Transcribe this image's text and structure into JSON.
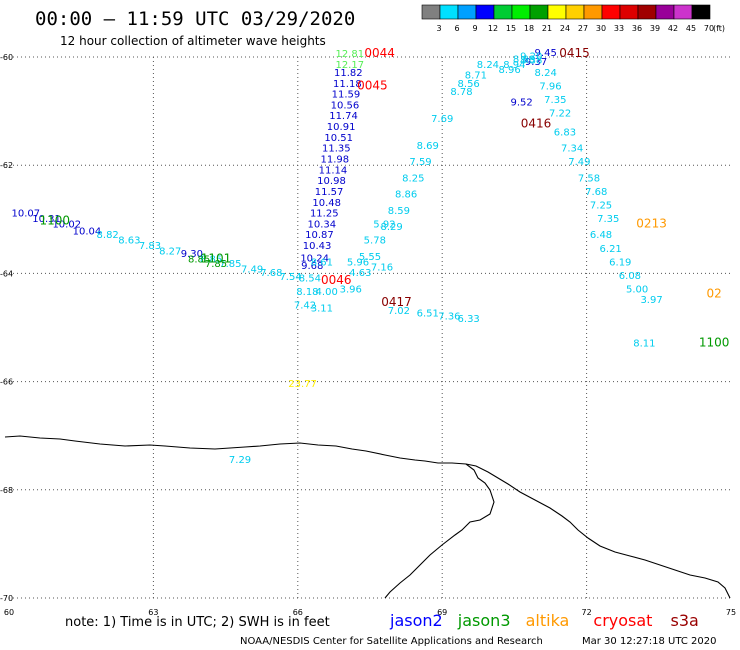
{
  "header": {
    "title": "00:00 – 11:59 UTC 03/29/2020",
    "subtitle": "12 hour collection of altimeter wave heights"
  },
  "legend": {
    "unit": "(ft)",
    "bins": [
      {
        "label": "3",
        "color": "#808080"
      },
      {
        "label": "6",
        "color": "#00e0ff"
      },
      {
        "label": "9",
        "color": "#00a0ff"
      },
      {
        "label": "12",
        "color": "#0000ff"
      },
      {
        "label": "15",
        "color": "#00cc33"
      },
      {
        "label": "18",
        "color": "#00ee00"
      },
      {
        "label": "21",
        "color": "#00a000"
      },
      {
        "label": "24",
        "color": "#ffff00"
      },
      {
        "label": "27",
        "color": "#ffd000"
      },
      {
        "label": "30",
        "color": "#ff9900"
      },
      {
        "label": "33",
        "color": "#ff0000"
      },
      {
        "label": "36",
        "color": "#dd0000"
      },
      {
        "label": "39",
        "color": "#a00000"
      },
      {
        "label": "42",
        "color": "#990099"
      },
      {
        "label": "45",
        "color": "#cc33cc"
      },
      {
        "label": "70",
        "color": "#000000"
      }
    ]
  },
  "footer": {
    "note": "note:  1) Time is in UTC;  2) SWH is in feet",
    "satellites": [
      {
        "name": "jason2",
        "color": "#0000ff"
      },
      {
        "name": "jason3",
        "color": "#009900"
      },
      {
        "name": "altika",
        "color": "#ff9900"
      },
      {
        "name": "cryosat",
        "color": "#ff0000"
      },
      {
        "name": "s3a",
        "color": "#990000"
      }
    ],
    "credit": "NOAA/NESDIS Center for Satellite Applications and Research",
    "timestamp": "Mar 30 12:27:18 UTC 2020"
  },
  "chart_data": {
    "type": "scatter",
    "title": "00:00 – 11:59 UTC 03/29/2020",
    "subtitle": "12 hour collection of altimeter wave heights",
    "xlim": [
      60,
      75
    ],
    "ylim": [
      -70,
      -60
    ],
    "xticks": [
      "60",
      "63",
      "66",
      "69",
      "72",
      "75"
    ],
    "yticks": [
      "-60",
      "-62",
      "-64",
      "-66",
      "-68",
      "-70"
    ],
    "grid": true,
    "legend": "bottom",
    "colors": {
      "grey": "#808080",
      "cyan": "#00ccee",
      "ltblue": "#0099ff",
      "blue": "#0000cc",
      "ltgreen": "#55ee55",
      "green": "#009900",
      "yellow": "#ffee00",
      "orange": "#ff9900",
      "red": "#ff0000",
      "darkred": "#880000"
    },
    "time_labels": [
      {
        "text": "0044",
        "x": 67.7,
        "y": -60.0,
        "color": "red"
      },
      {
        "text": "0045",
        "x": 67.55,
        "y": -60.6,
        "color": "red"
      },
      {
        "text": "0046",
        "x": 66.8,
        "y": -64.2,
        "color": "red"
      },
      {
        "text": "0415",
        "x": 71.75,
        "y": -60.0,
        "color": "darkred"
      },
      {
        "text": "0416",
        "x": 70.95,
        "y": -61.3,
        "color": "darkred"
      },
      {
        "text": "0417",
        "x": 68.05,
        "y": -64.6,
        "color": "darkred"
      },
      {
        "text": "1100",
        "x": 60.95,
        "y": -63.1,
        "color": "green"
      },
      {
        "text": "1101",
        "x": 64.3,
        "y": -63.8,
        "color": "green"
      },
      {
        "text": "1100",
        "x": 74.65,
        "y": -65.35,
        "color": "green"
      },
      {
        "text": "0213",
        "x": 73.35,
        "y": -63.15,
        "color": "orange"
      },
      {
        "text": "02",
        "x": 74.65,
        "y": -64.45,
        "color": "orange"
      }
    ],
    "series": [
      {
        "color": "ltgreen",
        "points": [
          {
            "x": 67.08,
            "y": -60.0,
            "v": "12.81"
          },
          {
            "x": 67.08,
            "y": -60.2,
            "v": "12.17"
          }
        ]
      },
      {
        "color": "blue",
        "points": [
          {
            "x": 67.05,
            "y": -60.35,
            "v": "11.82"
          },
          {
            "x": 67.03,
            "y": -60.55,
            "v": "11.18"
          },
          {
            "x": 67.0,
            "y": -60.75,
            "v": "11.59"
          },
          {
            "x": 66.98,
            "y": -60.95,
            "v": "10.56"
          },
          {
            "x": 66.95,
            "y": -61.15,
            "v": "11.74"
          },
          {
            "x": 66.9,
            "y": -61.35,
            "v": "10.91"
          },
          {
            "x": 66.85,
            "y": -61.55,
            "v": "10.51"
          },
          {
            "x": 66.8,
            "y": -61.75,
            "v": "11.35"
          },
          {
            "x": 66.77,
            "y": -61.95,
            "v": "11.98"
          },
          {
            "x": 66.73,
            "y": -62.15,
            "v": "11.14"
          },
          {
            "x": 66.7,
            "y": -62.35,
            "v": "10.98"
          },
          {
            "x": 66.65,
            "y": -62.55,
            "v": "11.57"
          },
          {
            "x": 66.6,
            "y": -62.75,
            "v": "10.48"
          },
          {
            "x": 66.55,
            "y": -62.95,
            "v": "11.25"
          },
          {
            "x": 66.5,
            "y": -63.15,
            "v": "10.34"
          },
          {
            "x": 66.45,
            "y": -63.35,
            "v": "10.87"
          },
          {
            "x": 66.4,
            "y": -63.55,
            "v": "10.43"
          },
          {
            "x": 66.35,
            "y": -63.78,
            "v": "10.24"
          },
          {
            "x": 66.3,
            "y": -63.92,
            "v": "9.68"
          },
          {
            "x": 60.35,
            "y": -62.95,
            "v": "10.07"
          },
          {
            "x": 60.78,
            "y": -63.05,
            "v": "10.31"
          },
          {
            "x": 61.2,
            "y": -63.15,
            "v": "10.02"
          },
          {
            "x": 61.62,
            "y": -63.28,
            "v": "10.04"
          },
          {
            "x": 63.8,
            "y": -63.7,
            "v": "9.30"
          },
          {
            "x": 71.15,
            "y": -59.98,
            "v": "9.45"
          },
          {
            "x": 70.95,
            "y": -60.15,
            "v": "9.37"
          },
          {
            "x": 70.65,
            "y": -60.9,
            "v": "9.52"
          }
        ]
      },
      {
        "color": "cyan",
        "points": [
          {
            "x": 66.25,
            "y": -64.15,
            "v": "8.54"
          },
          {
            "x": 66.2,
            "y": -64.4,
            "v": "8.18"
          },
          {
            "x": 66.15,
            "y": -64.65,
            "v": "7.42"
          },
          {
            "x": 66.6,
            "y": -64.4,
            "v": "4.00"
          },
          {
            "x": 66.5,
            "y": -64.7,
            "v": "3.11"
          },
          {
            "x": 67.1,
            "y": -64.35,
            "v": "3.96"
          },
          {
            "x": 67.3,
            "y": -64.05,
            "v": "4.63"
          },
          {
            "x": 67.5,
            "y": -63.75,
            "v": "5.55"
          },
          {
            "x": 67.6,
            "y": -63.45,
            "v": "5.78"
          },
          {
            "x": 67.8,
            "y": -63.15,
            "v": "5.92"
          },
          {
            "x": 67.25,
            "y": -63.85,
            "v": "5.96"
          },
          {
            "x": 67.75,
            "y": -63.95,
            "v": "7.16"
          },
          {
            "x": 66.5,
            "y": -63.85,
            "v": "8.61"
          },
          {
            "x": 67.95,
            "y": -63.2,
            "v": "8.29"
          },
          {
            "x": 68.1,
            "y": -62.9,
            "v": "8.59"
          },
          {
            "x": 68.25,
            "y": -62.6,
            "v": "8.86"
          },
          {
            "x": 68.4,
            "y": -62.3,
            "v": "8.25"
          },
          {
            "x": 68.55,
            "y": -62.0,
            "v": "7.59"
          },
          {
            "x": 68.7,
            "y": -61.7,
            "v": "8.69"
          },
          {
            "x": 69.0,
            "y": -61.2,
            "v": "7.69"
          },
          {
            "x": 69.4,
            "y": -60.7,
            "v": "8.78"
          },
          {
            "x": 69.55,
            "y": -60.55,
            "v": "8.56"
          },
          {
            "x": 69.7,
            "y": -60.4,
            "v": "8.71"
          },
          {
            "x": 69.95,
            "y": -60.2,
            "v": "8.24"
          },
          {
            "x": 70.4,
            "y": -60.3,
            "v": "8.96"
          },
          {
            "x": 70.5,
            "y": -60.2,
            "v": "8.94"
          },
          {
            "x": 70.7,
            "y": -60.1,
            "v": "8.88"
          },
          {
            "x": 70.85,
            "y": -60.05,
            "v": "9.20"
          },
          {
            "x": 70.85,
            "y": -60.12,
            "v": "8.38"
          },
          {
            "x": 71.15,
            "y": -60.35,
            "v": "8.24"
          },
          {
            "x": 71.25,
            "y": -60.6,
            "v": "7.96"
          },
          {
            "x": 71.35,
            "y": -60.85,
            "v": "7.35"
          },
          {
            "x": 71.45,
            "y": -61.1,
            "v": "7.22"
          },
          {
            "x": 71.55,
            "y": -61.45,
            "v": "6.83"
          },
          {
            "x": 71.7,
            "y": -61.75,
            "v": "7.34"
          },
          {
            "x": 71.85,
            "y": -62.0,
            "v": "7.49"
          },
          {
            "x": 72.05,
            "y": -62.3,
            "v": "7.58"
          },
          {
            "x": 72.2,
            "y": -62.55,
            "v": "7.68"
          },
          {
            "x": 72.3,
            "y": -62.8,
            "v": "7.25"
          },
          {
            "x": 72.45,
            "y": -63.05,
            "v": "7.35"
          },
          {
            "x": 72.3,
            "y": -63.35,
            "v": "6.48"
          },
          {
            "x": 72.5,
            "y": -63.6,
            "v": "6.21"
          },
          {
            "x": 72.7,
            "y": -63.85,
            "v": "6.19"
          },
          {
            "x": 72.9,
            "y": -64.1,
            "v": "6.08"
          },
          {
            "x": 73.05,
            "y": -64.35,
            "v": "5.00"
          },
          {
            "x": 73.35,
            "y": -64.55,
            "v": "3.97"
          },
          {
            "x": 62.05,
            "y": -63.35,
            "v": "8.82"
          },
          {
            "x": 62.5,
            "y": -63.45,
            "v": "8.63"
          },
          {
            "x": 62.93,
            "y": -63.55,
            "v": "7.83"
          },
          {
            "x": 63.35,
            "y": -63.65,
            "v": "8.27"
          },
          {
            "x": 64.2,
            "y": -63.8,
            "v": "8.85"
          },
          {
            "x": 64.6,
            "y": -63.88,
            "v": "7.85"
          },
          {
            "x": 65.05,
            "y": -63.98,
            "v": "7.49"
          },
          {
            "x": 65.45,
            "y": -64.05,
            "v": "7.68"
          },
          {
            "x": 65.85,
            "y": -64.12,
            "v": "7.54"
          },
          {
            "x": 68.1,
            "y": -64.75,
            "v": "7.02"
          },
          {
            "x": 68.7,
            "y": -64.8,
            "v": "6.51"
          },
          {
            "x": 69.15,
            "y": -64.85,
            "v": "7.36"
          },
          {
            "x": 69.55,
            "y": -64.9,
            "v": "6.33"
          },
          {
            "x": 73.2,
            "y": -65.35,
            "v": "8.11"
          },
          {
            "x": 64.8,
            "y": -67.5,
            "v": "7.29"
          }
        ]
      },
      {
        "color": "green",
        "points": [
          {
            "x": 63.95,
            "y": -63.8,
            "v": "8.85"
          },
          {
            "x": 64.3,
            "y": -63.88,
            "v": "7.85"
          }
        ]
      },
      {
        "color": "yellow",
        "points": [
          {
            "x": 66.1,
            "y": -66.1,
            "v": "23.77"
          }
        ]
      }
    ]
  }
}
